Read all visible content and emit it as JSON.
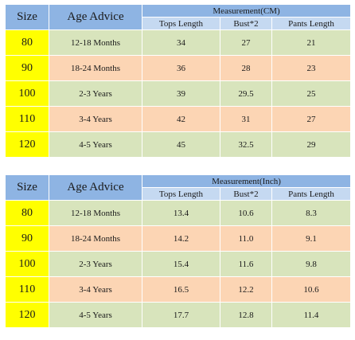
{
  "tables": [
    {
      "headers": {
        "size": "Size",
        "age": "Age Advice",
        "group": "Measurement(CM)",
        "tops": "Tops Length",
        "bust": "Bust*2",
        "pants": "Pants Length"
      },
      "rows": [
        {
          "size": "80",
          "age": "12-18 Months",
          "tops": "34",
          "bust": "27",
          "pants": "21"
        },
        {
          "size": "90",
          "age": "18-24 Months",
          "tops": "36",
          "bust": "28",
          "pants": "23"
        },
        {
          "size": "100",
          "age": "2-3 Years",
          "tops": "39",
          "bust": "29.5",
          "pants": "25"
        },
        {
          "size": "110",
          "age": "3-4 Years",
          "tops": "42",
          "bust": "31",
          "pants": "27"
        },
        {
          "size": "120",
          "age": "4-5 Years",
          "tops": "45",
          "bust": "32.5",
          "pants": "29"
        }
      ]
    },
    {
      "headers": {
        "size": "Size",
        "age": "Age Advice",
        "group": "Measurement(Inch)",
        "tops": "Tops Length",
        "bust": "Bust*2",
        "pants": "Pants Length"
      },
      "rows": [
        {
          "size": "80",
          "age": "12-18 Months",
          "tops": "13.4",
          "bust": "10.6",
          "pants": "8.3"
        },
        {
          "size": "90",
          "age": "18-24 Months",
          "tops": "14.2",
          "bust": "11.0",
          "pants": "9.1"
        },
        {
          "size": "100",
          "age": "2-3 Years",
          "tops": "15.4",
          "bust": "11.6",
          "pants": "9.8"
        },
        {
          "size": "110",
          "age": "3-4 Years",
          "tops": "16.5",
          "bust": "12.2",
          "pants": "10.6"
        },
        {
          "size": "120",
          "age": "4-5 Years",
          "tops": "17.7",
          "bust": "12.8",
          "pants": "11.4"
        }
      ]
    }
  ],
  "colors": {
    "header_blue": "#8eb4e3",
    "subheader_blue": "#c5d9f1",
    "size_yellow": "#ffff00",
    "row_green": "#d8e4bc",
    "row_peach": "#fcd5b4"
  }
}
